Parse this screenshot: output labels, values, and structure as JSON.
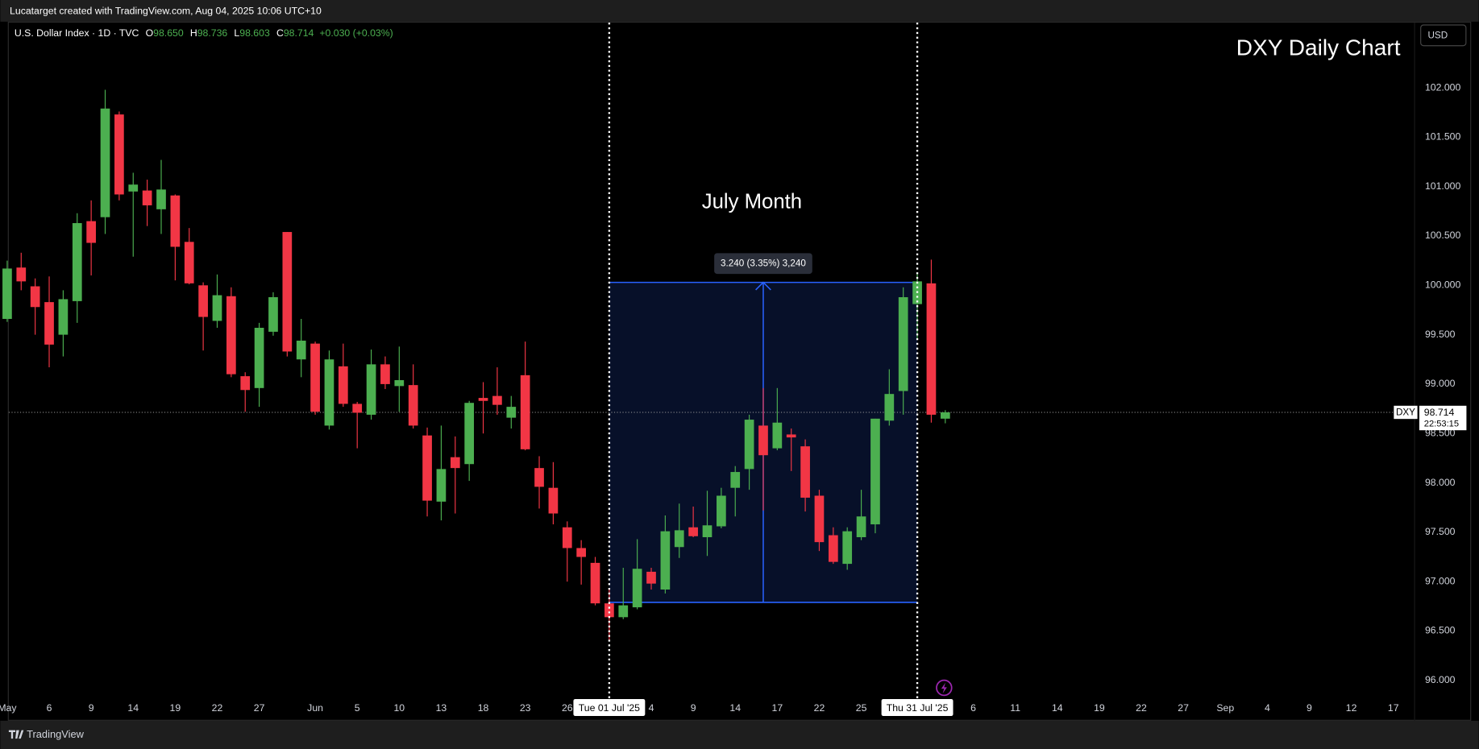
{
  "header": {
    "credit": "Lucatarget created with TradingView.com, Aug 04, 2025 10:06 UTC+10"
  },
  "chart_data": {
    "type": "candlestick",
    "title": "DXY Daily Chart",
    "annotation": "July Month",
    "legend": {
      "symbol": "U.S. Dollar Index · 1D · TVC",
      "fields": [
        {
          "key": "O",
          "value": "98.650"
        },
        {
          "key": "H",
          "value": "98.736"
        },
        {
          "key": "L",
          "value": "98.603"
        },
        {
          "key": "C",
          "value": "98.714"
        }
      ],
      "change": "+0.030 (+0.03%)"
    },
    "currency": "USD",
    "categories": [
      "May",
      null,
      null,
      "6",
      null,
      null,
      "9",
      null,
      null,
      "14",
      null,
      null,
      "19",
      null,
      null,
      "22",
      null,
      null,
      "27",
      null,
      null,
      null,
      "Jun",
      null,
      null,
      "5",
      null,
      null,
      "10",
      null,
      null,
      "13",
      null,
      null,
      "18",
      null,
      null,
      "23",
      null,
      null,
      "26",
      null,
      null,
      "Tue 01 Jul '25",
      null,
      null,
      "4",
      null,
      null,
      "9",
      null,
      null,
      "14",
      null,
      null,
      "17",
      null,
      null,
      "22",
      null,
      null,
      "25",
      null,
      null,
      null,
      "Thu 31 Jul '25",
      null,
      null,
      null,
      "6",
      null,
      null,
      "11",
      null,
      null,
      "14",
      null,
      null,
      "19",
      null,
      null,
      "22",
      null,
      null,
      "27",
      null,
      null,
      "Sep",
      null,
      null,
      "4",
      null,
      null,
      "9",
      null,
      null,
      "12",
      null,
      null,
      "17"
    ],
    "series": [
      {
        "name": "DXY",
        "up_color": "#4caf50",
        "down_color": "#f23645",
        "open": [
          99.66,
          100.18,
          99.99,
          99.83,
          99.5,
          99.84,
          100.65,
          100.69,
          101.73,
          100.95,
          100.96,
          100.77,
          100.91,
          100.44,
          100.0,
          99.64,
          99.89,
          99.08,
          98.96,
          99.53,
          100.54,
          99.25,
          99.41,
          98.58,
          99.18,
          98.8,
          98.69,
          99.2,
          98.98,
          98.99,
          98.48,
          97.81,
          98.26,
          98.19,
          98.86,
          98.88,
          98.66,
          99.09,
          98.15,
          97.95,
          97.55,
          97.34,
          97.19,
          96.78,
          96.64,
          96.74,
          97.1,
          96.92,
          97.35,
          97.55,
          97.45,
          97.56,
          97.95,
          98.14,
          98.58,
          98.35,
          98.49,
          98.37,
          97.87,
          97.47,
          97.18,
          97.45,
          97.58,
          98.63,
          98.93,
          99.81,
          100.02,
          98.65,
          null,
          null,
          null,
          null,
          null,
          null,
          null,
          null,
          null,
          null,
          null,
          null,
          null,
          null,
          null,
          null,
          null,
          null,
          null,
          null,
          null,
          null,
          null,
          null,
          null,
          null,
          null,
          null,
          null,
          null,
          null,
          null
        ],
        "high": [
          100.25,
          100.33,
          100.07,
          100.09,
          99.95,
          100.73,
          100.86,
          101.98,
          101.76,
          101.14,
          101.07,
          101.27,
          100.92,
          100.58,
          100.03,
          100.11,
          99.98,
          99.12,
          99.62,
          99.93,
          100.54,
          99.66,
          99.43,
          99.34,
          99.41,
          98.82,
          99.35,
          99.28,
          99.38,
          99.2,
          98.56,
          98.58,
          98.47,
          98.83,
          99.02,
          99.17,
          98.88,
          99.43,
          98.27,
          98.21,
          97.61,
          97.42,
          97.25,
          96.92,
          97.14,
          97.43,
          97.14,
          97.67,
          97.79,
          97.76,
          97.92,
          97.95,
          98.17,
          98.69,
          98.96,
          98.96,
          98.55,
          98.44,
          97.93,
          97.55,
          97.55,
          97.93,
          98.65,
          99.15,
          99.98,
          100.12,
          100.26,
          98.736,
          null,
          null,
          null,
          null,
          null,
          null,
          null,
          null,
          null,
          null,
          null,
          null,
          null,
          null,
          null,
          null,
          null,
          null,
          null,
          null,
          null,
          null,
          null,
          null,
          null,
          null,
          null,
          null,
          null,
          null,
          null,
          null
        ],
        "low": [
          99.63,
          99.95,
          99.5,
          99.17,
          99.28,
          99.62,
          100.1,
          100.52,
          100.86,
          100.29,
          100.6,
          100.52,
          100.05,
          100.01,
          99.34,
          99.57,
          99.07,
          98.72,
          98.77,
          99.49,
          99.28,
          99.07,
          98.69,
          98.54,
          98.77,
          98.35,
          98.64,
          98.95,
          98.72,
          98.55,
          97.66,
          97.62,
          97.69,
          98.02,
          98.5,
          98.69,
          98.55,
          98.33,
          97.74,
          97.58,
          97.0,
          96.97,
          96.76,
          96.4,
          96.62,
          96.72,
          96.92,
          96.88,
          97.24,
          97.45,
          97.26,
          97.54,
          97.66,
          97.93,
          97.72,
          98.33,
          98.12,
          97.71,
          97.31,
          97.18,
          97.12,
          97.42,
          97.49,
          98.58,
          98.69,
          99.45,
          98.61,
          98.603,
          null,
          null,
          null,
          null,
          null,
          null,
          null,
          null,
          null,
          null,
          null,
          null,
          null,
          null,
          null,
          null,
          null,
          null,
          null,
          null,
          null,
          null,
          null,
          null,
          null,
          null,
          null,
          null,
          null,
          null,
          null,
          null
        ],
        "close": [
          100.17,
          100.04,
          99.78,
          99.4,
          99.86,
          100.63,
          100.43,
          101.79,
          100.92,
          101.02,
          100.81,
          100.97,
          100.39,
          100.02,
          99.68,
          99.9,
          99.1,
          98.94,
          99.57,
          99.88,
          99.33,
          99.44,
          98.72,
          99.25,
          98.8,
          98.71,
          99.2,
          99.0,
          99.04,
          98.58,
          97.82,
          98.14,
          98.15,
          98.81,
          98.83,
          98.79,
          98.77,
          98.34,
          97.96,
          97.69,
          97.34,
          97.25,
          96.78,
          96.64,
          96.76,
          97.13,
          96.98,
          97.51,
          97.52,
          97.46,
          97.57,
          97.87,
          98.11,
          98.64,
          98.28,
          98.61,
          98.46,
          97.85,
          97.4,
          97.2,
          97.51,
          97.66,
          98.65,
          98.9,
          99.88,
          100.04,
          98.69,
          98.714,
          null,
          null,
          null,
          null,
          null,
          null,
          null,
          null,
          null,
          null,
          null,
          null,
          null,
          null,
          null,
          null,
          null,
          null,
          null,
          null,
          null,
          null,
          null,
          null,
          null,
          null,
          null,
          null,
          null,
          null,
          null,
          null
        ]
      }
    ],
    "ylim": [
      95.83,
      102.66
    ],
    "yticks": [
      {
        "value": 96,
        "label": "96.000"
      },
      {
        "value": 96.5,
        "label": "96.500"
      },
      {
        "value": 97,
        "label": "97.000"
      },
      {
        "value": 97.5,
        "label": "97.500"
      },
      {
        "value": 98,
        "label": "98.000"
      },
      {
        "value": 98.5,
        "label": "98.500"
      },
      {
        "value": 99,
        "label": "99.000"
      },
      {
        "value": 99.5,
        "label": "99.500"
      },
      {
        "value": 100,
        "label": "100.000"
      },
      {
        "value": 100.5,
        "label": "100.500"
      },
      {
        "value": 101,
        "label": "101.000"
      },
      {
        "value": 101.5,
        "label": "101.500"
      },
      {
        "value": 102,
        "label": "102.000"
      }
    ],
    "grid": false,
    "last_price": {
      "value": 98.714,
      "label": "98.714",
      "countdown": "22:53:15"
    },
    "measure": {
      "from": 96.79,
      "to": 100.03,
      "label": "3.240 (3.35%) 3,240",
      "color": "#2962ff"
    }
  },
  "footer": {
    "brand": "TradingView"
  }
}
